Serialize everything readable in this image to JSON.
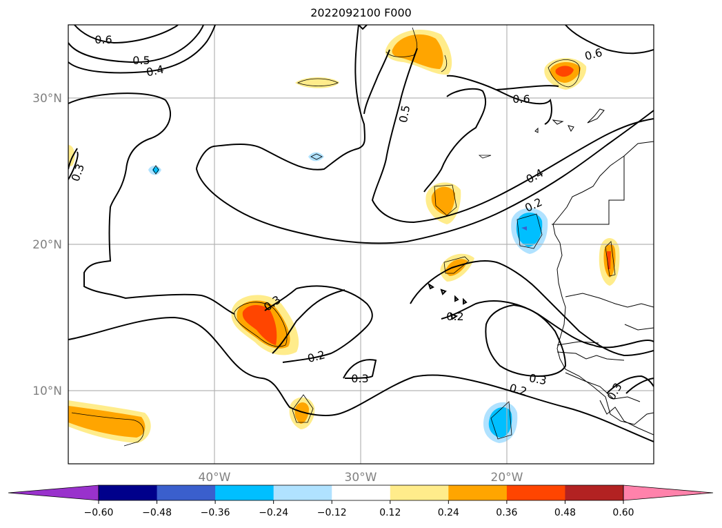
{
  "title": "2022092100 F000",
  "map": {
    "lat_ticks": [
      {
        "value": 30,
        "label": "30°N"
      },
      {
        "value": 20,
        "label": "20°N"
      },
      {
        "value": 10,
        "label": "10°N"
      }
    ],
    "lon_ticks": [
      {
        "value": -40,
        "label": "40°W"
      },
      {
        "value": -30,
        "label": "30°W"
      },
      {
        "value": -20,
        "label": "20°W"
      }
    ],
    "extent": {
      "lon": [
        -50,
        -10
      ],
      "lat": [
        5,
        35
      ]
    },
    "gridlines": true
  },
  "contour_labels": [
    "0.6",
    "0.5",
    "0.4",
    "0.3",
    "0.2",
    "0.5",
    "0.6",
    "0.6",
    "0.4",
    "0.2",
    "0.3",
    "0.3",
    "0.2",
    "0.3",
    "0.2",
    "0.3"
  ],
  "colorbar": {
    "ticks": [
      "−0.60",
      "−0.48",
      "−0.36",
      "−0.24",
      "−0.12",
      "0.12",
      "0.24",
      "0.36",
      "0.48",
      "0.60"
    ],
    "colors": [
      "#9932cc",
      "#00008b",
      "#3a5fcd",
      "#00bfff",
      "#b0e2ff",
      "#ffffff",
      "#ffec8b",
      "#ffa500",
      "#ff4500",
      "#b22222",
      "#ff82ab"
    ],
    "extend": "both"
  }
}
